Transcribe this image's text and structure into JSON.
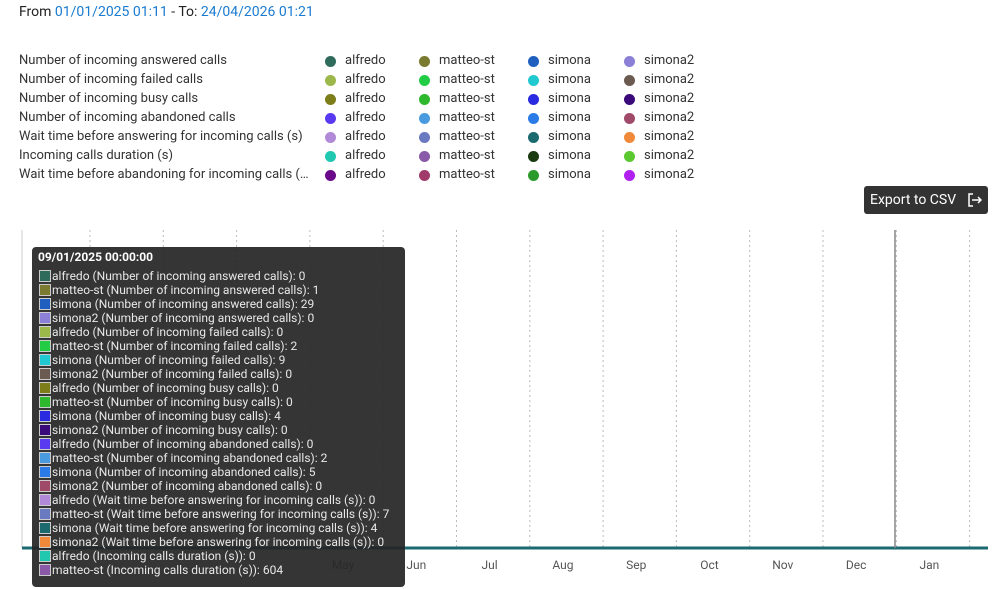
{
  "header": {
    "from_label": "From",
    "from_date": "01/01/2025 01:11",
    "to_label": "- To:",
    "to_date": "24/04/2026 01:21"
  },
  "legend": [
    {
      "label": "Number of incoming answered calls",
      "series": [
        {
          "name": "alfredo",
          "color": "#2e6b5a"
        },
        {
          "name": "matteo-st",
          "color": "#7a7a30"
        },
        {
          "name": "simona",
          "color": "#1f5fbf"
        },
        {
          "name": "simona2",
          "color": "#8b80d8"
        }
      ]
    },
    {
      "label": "Number of incoming failed calls",
      "series": [
        {
          "name": "alfredo",
          "color": "#9cb84a"
        },
        {
          "name": "matteo-st",
          "color": "#22cc44"
        },
        {
          "name": "simona",
          "color": "#20c8d0"
        },
        {
          "name": "simona2",
          "color": "#6b5a50"
        }
      ]
    },
    {
      "label": "Number of incoming busy calls",
      "series": [
        {
          "name": "alfredo",
          "color": "#7d7d1a"
        },
        {
          "name": "matteo-st",
          "color": "#2db82d"
        },
        {
          "name": "simona",
          "color": "#2a2ae0"
        },
        {
          "name": "simona2",
          "color": "#3a0a7a"
        }
      ]
    },
    {
      "label": "Number of incoming abandoned calls",
      "series": [
        {
          "name": "alfredo",
          "color": "#5a3af0"
        },
        {
          "name": "matteo-st",
          "color": "#4a9ae0"
        },
        {
          "name": "simona",
          "color": "#2a7ae8"
        },
        {
          "name": "simona2",
          "color": "#a04a6a"
        }
      ]
    },
    {
      "label": "Wait time before answering for incoming calls (s)",
      "series": [
        {
          "name": "alfredo",
          "color": "#b08ad8"
        },
        {
          "name": "matteo-st",
          "color": "#6a7ac0"
        },
        {
          "name": "simona",
          "color": "#1a6a70"
        },
        {
          "name": "simona2",
          "color": "#f08a3a"
        }
      ]
    },
    {
      "label": "Incoming calls duration (s)",
      "series": [
        {
          "name": "alfredo",
          "color": "#20c8b0"
        },
        {
          "name": "matteo-st",
          "color": "#8a5aa8"
        },
        {
          "name": "simona",
          "color": "#1a3a10"
        },
        {
          "name": "simona2",
          "color": "#5ac830"
        }
      ]
    },
    {
      "label": "Wait time before abandoning for incoming calls (…",
      "series": [
        {
          "name": "alfredo",
          "color": "#6a0a8a"
        },
        {
          "name": "matteo-st",
          "color": "#a03a6a"
        },
        {
          "name": "simona",
          "color": "#2a9a2a"
        },
        {
          "name": "simona2",
          "color": "#b020f0"
        }
      ]
    }
  ],
  "export_button": "Export to CSV",
  "months": [
    "May",
    "Jun",
    "Jul",
    "Aug",
    "Sep",
    "Oct",
    "Nov",
    "Dec",
    "Jan"
  ],
  "tooltip": {
    "title": "09/01/2025 00:00:00",
    "entries": [
      {
        "color": "#2e6b5a",
        "label": "alfredo (Number of incoming answered calls):",
        "value": 0
      },
      {
        "color": "#7a7a30",
        "label": "matteo-st (Number of incoming answered calls):",
        "value": 1
      },
      {
        "color": "#1f5fbf",
        "label": "simona (Number of incoming answered calls):",
        "value": 29
      },
      {
        "color": "#8b80d8",
        "label": "simona2 (Number of incoming answered calls):",
        "value": 0
      },
      {
        "color": "#9cb84a",
        "label": "alfredo (Number of incoming failed calls):",
        "value": 0
      },
      {
        "color": "#22cc44",
        "label": "matteo-st (Number of incoming failed calls):",
        "value": 2
      },
      {
        "color": "#20c8d0",
        "label": "simona (Number of incoming failed calls):",
        "value": 9
      },
      {
        "color": "#6b5a50",
        "label": "simona2 (Number of incoming failed calls):",
        "value": 0
      },
      {
        "color": "#7d7d1a",
        "label": "alfredo (Number of incoming busy calls):",
        "value": 0
      },
      {
        "color": "#2db82d",
        "label": "matteo-st (Number of incoming busy calls):",
        "value": 0
      },
      {
        "color": "#2a2ae0",
        "label": "simona (Number of incoming busy calls):",
        "value": 4
      },
      {
        "color": "#3a0a7a",
        "label": "simona2 (Number of incoming busy calls):",
        "value": 0
      },
      {
        "color": "#5a3af0",
        "label": "alfredo (Number of incoming abandoned calls):",
        "value": 0
      },
      {
        "color": "#4a9ae0",
        "label": "matteo-st (Number of incoming abandoned calls):",
        "value": 2
      },
      {
        "color": "#2a7ae8",
        "label": "simona (Number of incoming abandoned calls):",
        "value": 5
      },
      {
        "color": "#a04a6a",
        "label": "simona2 (Number of incoming abandoned calls):",
        "value": 0
      },
      {
        "color": "#b08ad8",
        "label": "alfredo (Wait time before answering for incoming calls (s)):",
        "value": 0
      },
      {
        "color": "#6a7ac0",
        "label": "matteo-st (Wait time before answering for incoming calls (s)):",
        "value": 7
      },
      {
        "color": "#1a6a70",
        "label": "simona (Wait time before answering for incoming calls (s)):",
        "value": 4
      },
      {
        "color": "#f08a3a",
        "label": "simona2 (Wait time before answering for incoming calls (s)):",
        "value": 0
      },
      {
        "color": "#20c8b0",
        "label": "alfredo (Incoming calls duration (s)):",
        "value": 0
      },
      {
        "color": "#8a5aa8",
        "label": "matteo-st (Incoming calls duration (s)):",
        "value": 604
      }
    ]
  }
}
